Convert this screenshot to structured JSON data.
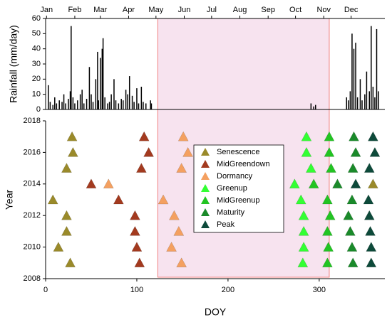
{
  "chart_data": [
    {
      "type": "bar",
      "ylabel": "Rainfall (mm/day)",
      "color": "#000000",
      "xlim": [
        0,
        372
      ],
      "ylim": [
        0,
        60
      ],
      "yticks": [
        0,
        10,
        20,
        30,
        40,
        50,
        60
      ],
      "xticks": [
        {
          "value": 1,
          "label": "Jan"
        },
        {
          "value": 32,
          "label": "Feb"
        },
        {
          "value": 60,
          "label": "Mar"
        },
        {
          "value": 91,
          "label": "Apr"
        },
        {
          "value": 121,
          "label": "May"
        },
        {
          "value": 152,
          "label": "Jun"
        },
        {
          "value": 182,
          "label": "Jul"
        },
        {
          "value": 213,
          "label": "Aug"
        },
        {
          "value": 244,
          "label": "Sep"
        },
        {
          "value": 274,
          "label": "Oct"
        },
        {
          "value": 305,
          "label": "Nov"
        },
        {
          "value": 335,
          "label": "Dec"
        }
      ],
      "x": [
        3,
        5,
        8,
        10,
        12,
        15,
        18,
        20,
        22,
        25,
        27,
        28,
        30,
        32,
        35,
        38,
        40,
        42,
        45,
        48,
        50,
        52,
        55,
        57,
        58,
        60,
        62,
        63,
        65,
        68,
        70,
        72,
        75,
        77,
        80,
        83,
        85,
        88,
        90,
        92,
        95,
        97,
        100,
        102,
        105,
        107,
        110,
        115,
        116,
        291,
        294,
        296,
        330,
        332,
        334,
        336,
        338,
        340,
        342,
        345,
        347,
        350,
        352,
        355,
        357,
        359,
        361,
        363,
        365
      ],
      "values": [
        16,
        5,
        3,
        8,
        4,
        6,
        5,
        10,
        4,
        7,
        12,
        55,
        8,
        4,
        6,
        10,
        13,
        4,
        7,
        28,
        10,
        5,
        20,
        38,
        6,
        34,
        40,
        47,
        8,
        4,
        5,
        10,
        20,
        6,
        4,
        7,
        6,
        13,
        10,
        22,
        9,
        5,
        14,
        4,
        15,
        5,
        4,
        6,
        4,
        4,
        2,
        3,
        8,
        6,
        12,
        50,
        40,
        44,
        8,
        20,
        6,
        10,
        25,
        12,
        55,
        15,
        8,
        53,
        12
      ]
    },
    {
      "type": "scatter",
      "xlabel": "DOY",
      "ylabel": "Year",
      "xlim": [
        0,
        372
      ],
      "ylim": [
        2008,
        2018
      ],
      "xticks": [
        0,
        100,
        200,
        300
      ],
      "yticks": [
        2008,
        2010,
        2012,
        2014,
        2016,
        2018
      ],
      "shaded_region": [
        123,
        311
      ],
      "shaded_color": "#f7e3ef",
      "series": [
        {
          "name": "Senescence",
          "color": "#9a8a2a",
          "x": [
            27,
            14,
            23,
            23,
            8,
            359,
            23,
            30,
            29
          ],
          "values": [
            2009,
            2010,
            2011,
            2012,
            2013,
            2014,
            2015,
            2016,
            2017
          ]
        },
        {
          "name": "MidGreendown",
          "color": "#a33a1f",
          "x": [
            103,
            100,
            98,
            98,
            80,
            50,
            105,
            113,
            108
          ],
          "values": [
            2009,
            2010,
            2011,
            2012,
            2013,
            2014,
            2015,
            2016,
            2017
          ]
        },
        {
          "name": "Dormancy",
          "color": "#f4a060",
          "x": [
            149,
            138,
            146,
            141,
            129,
            69,
            149,
            156,
            151
          ],
          "values": [
            2009,
            2010,
            2011,
            2012,
            2013,
            2014,
            2015,
            2016,
            2017
          ]
        },
        {
          "name": "Greenup",
          "color": "#33ff33",
          "x": [
            282,
            283,
            283,
            283,
            280,
            273,
            291,
            286,
            286
          ],
          "values": [
            2009,
            2010,
            2011,
            2012,
            2013,
            2014,
            2015,
            2016,
            2017
          ]
        },
        {
          "name": "MidGreenup",
          "color": "#22c422",
          "x": [
            309,
            310,
            309,
            312,
            309,
            294,
            313,
            311,
            311
          ],
          "values": [
            2009,
            2010,
            2011,
            2012,
            2013,
            2014,
            2015,
            2016,
            2017
          ]
        },
        {
          "name": "Maturity",
          "color": "#1a8a2a",
          "x": [
            337,
            336,
            334,
            332,
            336,
            320,
            337,
            340,
            338
          ],
          "values": [
            2009,
            2010,
            2011,
            2012,
            2013,
            2014,
            2015,
            2016,
            2017
          ]
        },
        {
          "name": "Peak",
          "color": "#0d4a3a",
          "x": [
            357,
            357,
            356,
            355,
            354,
            340,
            355,
            361,
            359
          ],
          "values": [
            2009,
            2010,
            2011,
            2012,
            2013,
            2014,
            2015,
            2016,
            2017
          ]
        }
      ]
    }
  ]
}
